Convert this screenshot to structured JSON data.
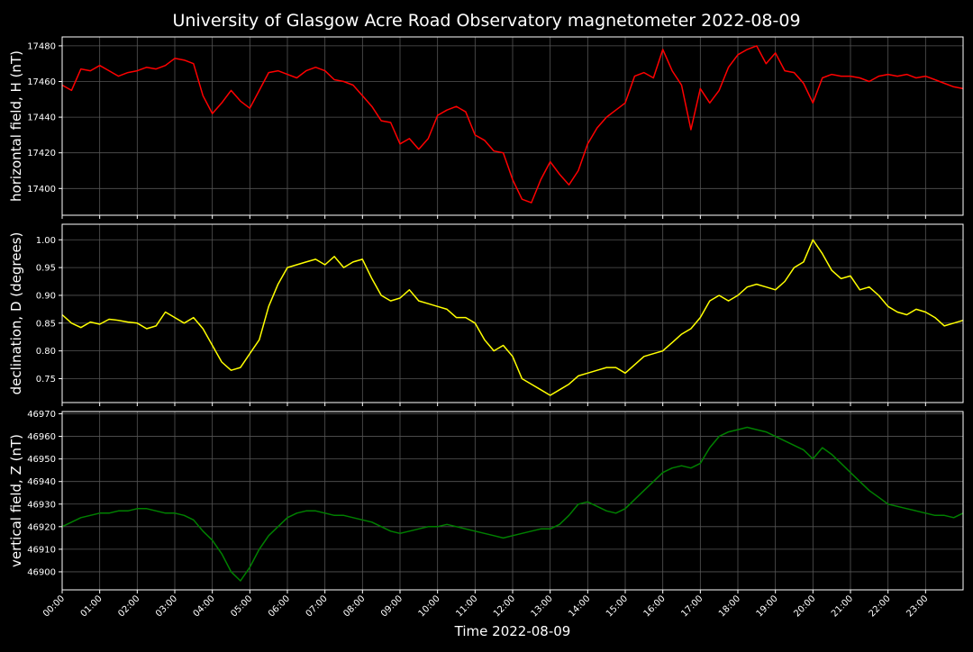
{
  "figure": {
    "title": "University of Glasgow Acre Road Observatory magnetometer 2022-08-09",
    "xlabel": "Time 2022-08-09",
    "background": "#000000",
    "grid_color": "#555555"
  },
  "chart_data": [
    {
      "type": "line",
      "ylabel": "horizontal field, H (nT)",
      "color": "#ff0000",
      "ylim": [
        17385,
        17485
      ],
      "yticks": [
        17400,
        17420,
        17440,
        17460,
        17480
      ],
      "xlim": [
        0,
        24
      ],
      "grid": true,
      "series": [
        {
          "x": [
            0,
            0.25,
            0.5,
            0.75,
            1,
            1.25,
            1.5,
            1.75,
            2,
            2.25,
            2.5,
            2.75,
            3,
            3.25,
            3.5,
            3.75,
            4,
            4.25,
            4.5,
            4.75,
            5,
            5.25,
            5.5,
            5.75,
            6,
            6.25,
            6.5,
            6.75,
            7,
            7.25,
            7.5,
            7.75,
            8,
            8.25,
            8.5,
            8.75,
            9,
            9.25,
            9.5,
            9.75,
            10,
            10.25,
            10.5,
            10.75,
            11,
            11.25,
            11.5,
            11.75,
            12,
            12.25,
            12.5,
            12.75,
            13,
            13.25,
            13.5,
            13.75,
            14,
            14.25,
            14.5,
            14.75,
            15,
            15.25,
            15.5,
            15.75,
            16,
            16.25,
            16.5,
            16.75,
            17,
            17.25,
            17.5,
            17.75,
            18,
            18.25,
            18.5,
            18.75,
            19,
            19.25,
            19.5,
            19.75,
            20,
            20.25,
            20.5,
            20.75,
            21,
            21.25,
            21.5,
            21.75,
            22,
            22.25,
            22.5,
            22.75,
            23,
            23.25,
            23.5,
            23.75,
            24
          ],
          "y": [
            17458,
            17455,
            17467,
            17466,
            17469,
            17466,
            17463,
            17465,
            17466,
            17468,
            17467,
            17469,
            17473,
            17472,
            17470,
            17452,
            17442,
            17448,
            17455,
            17449,
            17445,
            17455,
            17465,
            17466,
            17464,
            17462,
            17466,
            17468,
            17466,
            17461,
            17460,
            17458,
            17452,
            17446,
            17438,
            17437,
            17425,
            17428,
            17422,
            17428,
            17441,
            17444,
            17446,
            17443,
            17430,
            17427,
            17421,
            17420,
            17405,
            17394,
            17392,
            17405,
            17415,
            17408,
            17402,
            17410,
            17425,
            17434,
            17440,
            17444,
            17448,
            17463,
            17465,
            17462,
            17478,
            17466,
            17458,
            17433,
            17456,
            17448,
            17455,
            17468,
            17475,
            17478,
            17480,
            17470,
            17476,
            17466,
            17465,
            17459,
            17448,
            17462,
            17464,
            17463,
            17463,
            17462,
            17460,
            17463,
            17464,
            17463,
            17464,
            17462,
            17463,
            17461,
            17459,
            17457,
            17456
          ]
        }
      ]
    },
    {
      "type": "line",
      "ylabel": "declination, D (degrees)",
      "color": "#ffff00",
      "ylim": [
        0.707,
        1.028
      ],
      "yticks": [
        0.75,
        0.8,
        0.85,
        0.9,
        0.95,
        1.0
      ],
      "xlim": [
        0,
        24
      ],
      "grid": true,
      "series": [
        {
          "x": [
            0,
            0.25,
            0.5,
            0.75,
            1,
            1.25,
            1.5,
            1.75,
            2,
            2.25,
            2.5,
            2.75,
            3,
            3.25,
            3.5,
            3.75,
            4,
            4.25,
            4.5,
            4.75,
            5,
            5.25,
            5.5,
            5.75,
            6,
            6.25,
            6.5,
            6.75,
            7,
            7.25,
            7.5,
            7.75,
            8,
            8.25,
            8.5,
            8.75,
            9,
            9.25,
            9.5,
            9.75,
            10,
            10.25,
            10.5,
            10.75,
            11,
            11.25,
            11.5,
            11.75,
            12,
            12.25,
            12.5,
            12.75,
            13,
            13.25,
            13.5,
            13.75,
            14,
            14.25,
            14.5,
            14.75,
            15,
            15.25,
            15.5,
            15.75,
            16,
            16.25,
            16.5,
            16.75,
            17,
            17.25,
            17.5,
            17.75,
            18,
            18.25,
            18.5,
            18.75,
            19,
            19.25,
            19.5,
            19.75,
            20,
            20.25,
            20.5,
            20.75,
            21,
            21.25,
            21.5,
            21.75,
            22,
            22.25,
            22.5,
            22.75,
            23,
            23.25,
            23.5,
            23.75,
            24
          ],
          "y": [
            0.865,
            0.85,
            0.842,
            0.852,
            0.848,
            0.857,
            0.855,
            0.852,
            0.85,
            0.84,
            0.845,
            0.87,
            0.86,
            0.85,
            0.86,
            0.84,
            0.81,
            0.78,
            0.765,
            0.77,
            0.795,
            0.82,
            0.88,
            0.92,
            0.95,
            0.955,
            0.96,
            0.965,
            0.955,
            0.97,
            0.95,
            0.96,
            0.965,
            0.93,
            0.9,
            0.89,
            0.895,
            0.91,
            0.89,
            0.885,
            0.88,
            0.875,
            0.86,
            0.86,
            0.85,
            0.82,
            0.8,
            0.81,
            0.79,
            0.75,
            0.74,
            0.73,
            0.72,
            0.73,
            0.74,
            0.755,
            0.76,
            0.765,
            0.77,
            0.77,
            0.76,
            0.775,
            0.79,
            0.795,
            0.8,
            0.815,
            0.83,
            0.84,
            0.86,
            0.89,
            0.9,
            0.89,
            0.9,
            0.915,
            0.92,
            0.915,
            0.91,
            0.925,
            0.95,
            0.96,
            1.0,
            0.975,
            0.945,
            0.93,
            0.935,
            0.91,
            0.915,
            0.9,
            0.88,
            0.87,
            0.865,
            0.875,
            0.87,
            0.86,
            0.845,
            0.85,
            0.855
          ]
        }
      ]
    },
    {
      "type": "line",
      "ylabel": "vertical field, Z (nT)",
      "color": "#008000",
      "ylim": [
        46892,
        46971
      ],
      "yticks": [
        46900,
        46910,
        46920,
        46930,
        46940,
        46950,
        46960,
        46970
      ],
      "xlim": [
        0,
        24
      ],
      "grid": true,
      "series": [
        {
          "x": [
            0,
            0.25,
            0.5,
            0.75,
            1,
            1.25,
            1.5,
            1.75,
            2,
            2.25,
            2.5,
            2.75,
            3,
            3.25,
            3.5,
            3.75,
            4,
            4.25,
            4.5,
            4.75,
            5,
            5.25,
            5.5,
            5.75,
            6,
            6.25,
            6.5,
            6.75,
            7,
            7.25,
            7.5,
            7.75,
            8,
            8.25,
            8.5,
            8.75,
            9,
            9.25,
            9.5,
            9.75,
            10,
            10.25,
            10.5,
            10.75,
            11,
            11.25,
            11.5,
            11.75,
            12,
            12.25,
            12.5,
            12.75,
            13,
            13.25,
            13.5,
            13.75,
            14,
            14.25,
            14.5,
            14.75,
            15,
            15.25,
            15.5,
            15.75,
            16,
            16.25,
            16.5,
            16.75,
            17,
            17.25,
            17.5,
            17.75,
            18,
            18.25,
            18.5,
            18.75,
            19,
            19.25,
            19.5,
            19.75,
            20,
            20.25,
            20.5,
            20.75,
            21,
            21.25,
            21.5,
            21.75,
            22,
            22.25,
            22.5,
            22.75,
            23,
            23.25,
            23.5,
            23.75,
            24
          ],
          "y": [
            46920,
            46922,
            46924,
            46925,
            46926,
            46926,
            46927,
            46927,
            46928,
            46928,
            46927,
            46926,
            46926,
            46925,
            46923,
            46918,
            46914,
            46908,
            46900,
            46896,
            46902,
            46910,
            46916,
            46920,
            46924,
            46926,
            46927,
            46927,
            46926,
            46925,
            46925,
            46924,
            46923,
            46922,
            46920,
            46918,
            46917,
            46918,
            46919,
            46920,
            46920,
            46921,
            46920,
            46919,
            46918,
            46917,
            46916,
            46915,
            46916,
            46917,
            46918,
            46919,
            46919,
            46921,
            46925,
            46930,
            46931,
            46929,
            46927,
            46926,
            46928,
            46932,
            46936,
            46940,
            46944,
            46946,
            46947,
            46946,
            46948,
            46955,
            46960,
            46962,
            46963,
            46964,
            46963,
            46962,
            46960,
            46958,
            46956,
            46954,
            46950,
            46955,
            46952,
            46948,
            46944,
            46940,
            46936,
            46933,
            46930,
            46929,
            46928,
            46927,
            46926,
            46925,
            46925,
            46924,
            46926
          ]
        }
      ]
    }
  ],
  "xticks": [
    "00:00",
    "01:00",
    "02:00",
    "03:00",
    "04:00",
    "05:00",
    "06:00",
    "07:00",
    "08:00",
    "09:00",
    "10:00",
    "11:00",
    "12:00",
    "13:00",
    "14:00",
    "15:00",
    "16:00",
    "17:00",
    "18:00",
    "19:00",
    "20:00",
    "21:00",
    "22:00",
    "23:00"
  ]
}
